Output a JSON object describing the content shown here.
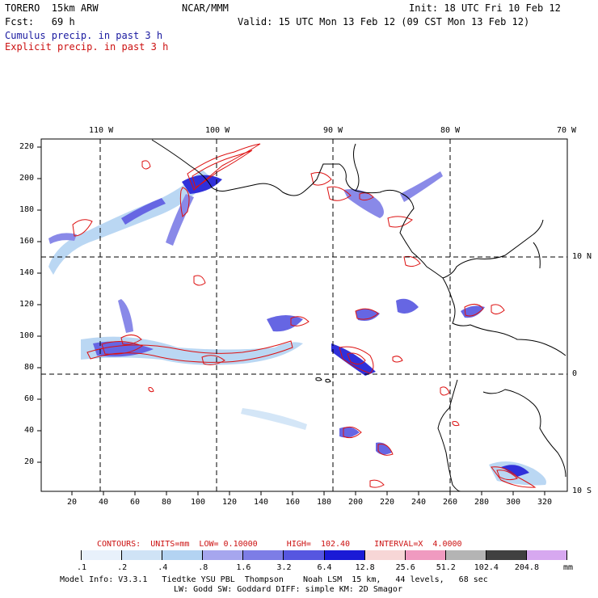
{
  "header": {
    "model": "TORERO  15km ARW",
    "org": "NCAR/MMM",
    "init": "Init: 18 UTC Fri 10 Feb 12",
    "fcst": "Fcst:   69 h",
    "valid": "Valid: 15 UTC Mon 13 Feb 12 (09 CST Mon 13 Feb 12)",
    "cumulus": "Cumulus precip. in past 3 h",
    "explicit": "Explicit precip. in past 3 h"
  },
  "axes": {
    "top_lon": [
      "110 W",
      "100 W",
      "90 W",
      "80 W",
      "70 W"
    ],
    "right_lat": [
      "10 N",
      "0",
      "10 S"
    ],
    "left_y": [
      "220",
      "200",
      "180",
      "160",
      "140",
      "120",
      "100",
      "80",
      "60",
      "40",
      "20"
    ],
    "bottom_x": [
      "20",
      "40",
      "60",
      "80",
      "100",
      "120",
      "140",
      "160",
      "180",
      "200",
      "220",
      "240",
      "260",
      "280",
      "300",
      "320"
    ]
  },
  "contours": {
    "label": "CONTOURS:  UNITS=mm  LOW= 0.10000      HIGH=  102.40     INTERVAL=X  4.0000"
  },
  "colorbar": {
    "colors": [
      "#ffffff",
      "#e8f1fb",
      "#cfe3f6",
      "#b3d3f2",
      "#a6a6ee",
      "#7d7de6",
      "#5656e0",
      "#1a1ad6",
      "#f7d6d6",
      "#f09ac0",
      "#b4b4b4",
      "#404040",
      "#d7a8f0"
    ],
    "labels": [
      ".1",
      ".2",
      ".4",
      ".8",
      "1.6",
      "3.2",
      "6.4",
      "12.8",
      "25.6",
      "51.2",
      "102.4",
      "204.8"
    ],
    "unit": "mm"
  },
  "footer": {
    "line1": "Model Info: V3.3.1   Tiedtke YSU PBL  Thompson    Noah LSM  15 km,   44 levels,   68 sec",
    "line2": "LW: Godd SW: Goddard DIFF: simple KM: 2D Smagor"
  }
}
